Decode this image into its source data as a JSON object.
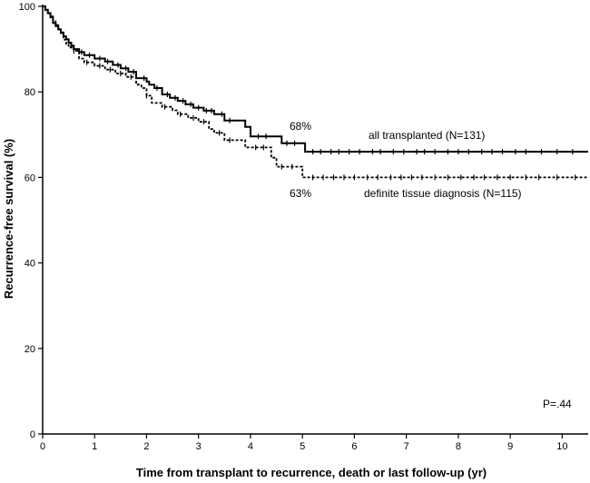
{
  "chart_data": {
    "type": "line",
    "title": "",
    "xlabel": "Time from transplant to recurrence, death or last follow-up (yr)",
    "ylabel": "Recurrence-free survival (%)",
    "xlim": [
      0,
      10.5
    ],
    "ylim": [
      0,
      100
    ],
    "xticks": [
      0,
      1,
      2,
      3,
      4,
      5,
      6,
      7,
      8,
      9,
      10
    ],
    "yticks": [
      0,
      20,
      40,
      60,
      80,
      100
    ],
    "grid": false,
    "colors": {
      "solid": "#000000",
      "dotted": "#000000"
    },
    "series": [
      {
        "name": "all transplanted (N=131)",
        "style": "solid",
        "x": [
          0,
          0.05,
          0.1,
          0.15,
          0.2,
          0.25,
          0.3,
          0.35,
          0.4,
          0.45,
          0.5,
          0.55,
          0.6,
          0.7,
          0.8,
          1.0,
          1.2,
          1.35,
          1.5,
          1.65,
          1.8,
          2.0,
          2.05,
          2.15,
          2.3,
          2.45,
          2.6,
          2.75,
          2.9,
          3.1,
          3.3,
          3.5,
          3.9,
          4.0,
          4.5,
          4.6,
          4.9,
          5.05,
          10.5
        ],
        "y": [
          100,
          99.2,
          98.4,
          97.6,
          96.1,
          95.4,
          94.6,
          93.8,
          93.0,
          92.3,
          91.5,
          90.8,
          90.0,
          89.3,
          88.6,
          87.8,
          87.1,
          86.3,
          85.5,
          84.7,
          83.2,
          82.4,
          81.7,
          80.9,
          79.4,
          78.6,
          77.9,
          77.1,
          76.3,
          75.6,
          74.8,
          73.3,
          71.8,
          69.6,
          69.6,
          68.0,
          68.0,
          66.0,
          66.0
        ]
      },
      {
        "name": "definite tissue diagnosis (N=115)",
        "style": "dotted",
        "x": [
          0,
          0.05,
          0.1,
          0.15,
          0.2,
          0.25,
          0.3,
          0.35,
          0.4,
          0.45,
          0.5,
          0.6,
          0.7,
          0.8,
          1.0,
          1.2,
          1.4,
          1.6,
          1.8,
          1.9,
          2.0,
          2.1,
          2.3,
          2.5,
          2.6,
          2.8,
          3.0,
          3.2,
          3.3,
          3.5,
          3.9,
          4.4,
          4.5,
          5.0,
          10.5
        ],
        "y": [
          100,
          99.1,
          98.3,
          97.4,
          96.5,
          95.6,
          94.8,
          93.9,
          92.2,
          91.3,
          90.4,
          89.6,
          87.8,
          86.9,
          86.1,
          85.2,
          84.3,
          83.5,
          81.7,
          80.9,
          79.1,
          77.4,
          76.5,
          75.7,
          74.8,
          73.9,
          73.0,
          71.3,
          70.4,
          68.7,
          67.0,
          64.6,
          62.5,
          60.0,
          60.0
        ]
      }
    ],
    "censor_x": {
      "solid": [
        0.55,
        0.75,
        0.9,
        1.1,
        1.25,
        1.45,
        1.6,
        1.75,
        1.95,
        2.2,
        2.4,
        2.55,
        2.7,
        2.85,
        3.0,
        3.15,
        3.25,
        3.45,
        3.6,
        4.15,
        4.3,
        4.7,
        4.85,
        5.2,
        5.35,
        5.55,
        5.7,
        5.9,
        6.1,
        6.35,
        6.5,
        6.75,
        6.95,
        7.2,
        7.35,
        7.55,
        7.8,
        8.0,
        8.2,
        8.45,
        8.65,
        8.85,
        9.1,
        9.3,
        9.6,
        9.9,
        10.2
      ],
      "dotted": [
        0.6,
        0.85,
        1.1,
        1.3,
        1.5,
        1.7,
        2.0,
        2.35,
        2.65,
        2.9,
        3.1,
        3.4,
        3.6,
        4.1,
        4.25,
        4.6,
        4.8,
        5.2,
        5.4,
        5.6,
        5.8,
        6.0,
        6.25,
        6.45,
        6.7,
        6.9,
        7.1,
        7.3,
        7.55,
        7.8,
        8.05,
        8.3,
        8.5,
        8.75,
        9.0,
        9.3,
        9.55,
        9.9,
        10.25
      ]
    },
    "annotations": {
      "pct_solid": "68%",
      "label_solid": "all transplanted (N=131)",
      "pct_dotted": "63%",
      "label_dotted": "definite tissue diagnosis (N=115)",
      "pvalue": "P=.44"
    }
  }
}
